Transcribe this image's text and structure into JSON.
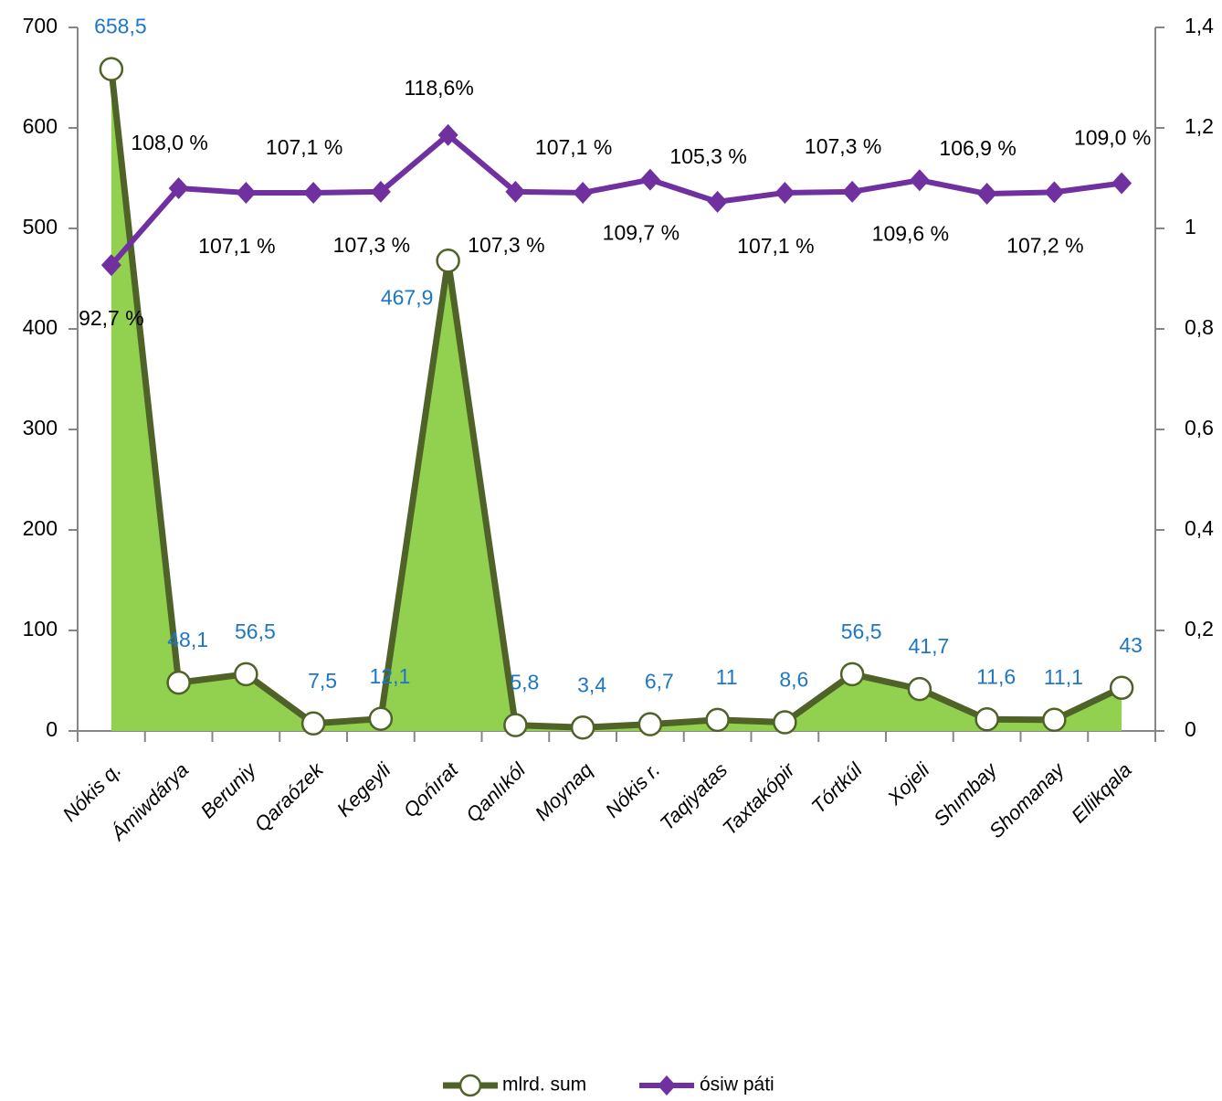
{
  "chart_data": {
    "type": "line",
    "categories": [
      "Nókis  q.",
      "Ámiwdárya",
      "Beruniy",
      "Qaraózek",
      "Kegeyli",
      "Qońırat",
      "Qanlıkól",
      "Moynaq",
      "Nókis r.",
      "Taqiyatas",
      "Taxtakópir",
      "Tórtkúl",
      "Xojeli",
      "Shımbay",
      "Shomanay",
      "Ellikqala"
    ],
    "series": [
      {
        "name": "mlrd. sum",
        "color": "#4f6228",
        "area_color": "#92d050",
        "values": [
          658.5,
          48.1,
          56.5,
          7.5,
          12.1,
          467.9,
          5.8,
          3.4,
          6.7,
          11,
          8.6,
          56.5,
          41.7,
          11.6,
          11.1,
          43
        ],
        "value_labels": [
          "658,5",
          "48,1",
          "56,5",
          "7,5",
          "12,1",
          "467,9",
          "5,8",
          "3,4",
          "6,7",
          "11",
          "8,6",
          "56,5",
          "41,7",
          "11,6",
          "11,1",
          "43"
        ]
      },
      {
        "name": "ósiw páti",
        "color": "#7030a0",
        "axis": "y2",
        "values": [
          0.927,
          1.08,
          1.071,
          1.071,
          1.073,
          1.186,
          1.073,
          1.071,
          1.097,
          1.053,
          1.071,
          1.073,
          1.096,
          1.069,
          1.072,
          1.09
        ],
        "value_labels": [
          "92,7 %",
          "108,0 %",
          "107,1 %",
          "107,1 %",
          "107,3 %",
          "118,6%",
          "107,3 %",
          "107,1 %",
          "109,7 %",
          "105,3 %",
          "107,1 %",
          "107,3 %",
          "109,6 %",
          "106,9 %",
          "107,2 %",
          "109,0 %"
        ]
      }
    ],
    "ylim": [
      0,
      700
    ],
    "yticks": [
      0,
      100,
      200,
      300,
      400,
      500,
      600,
      700
    ],
    "y2lim": [
      0,
      1.4
    ],
    "y2ticks": [
      0,
      {
        "value": 0.2,
        "label": "0,2"
      },
      {
        "value": 0.4,
        "label": "0,4"
      },
      {
        "value": 0.6,
        "label": "0,6"
      },
      {
        "value": 0.8,
        "label": "0,8"
      },
      1,
      {
        "value": 1.2,
        "label": "1,2"
      },
      {
        "value": 1.4,
        "label": "1,4"
      }
    ],
    "legend": "bottom"
  }
}
